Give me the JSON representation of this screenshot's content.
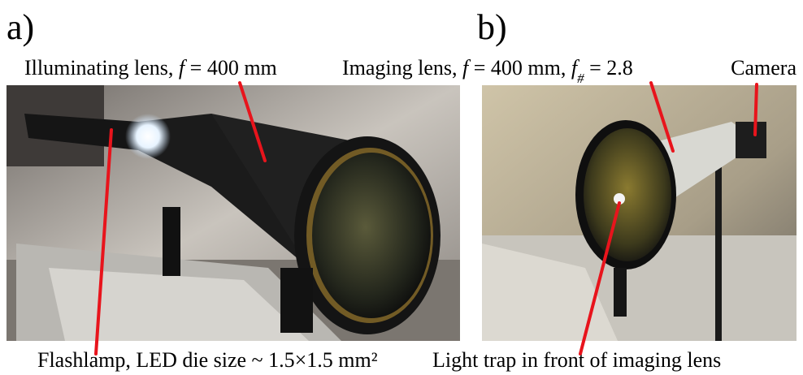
{
  "panels": [
    {
      "label": "a)",
      "annotations": [
        {
          "parts": [
            {
              "text": "Illuminating lens, "
            },
            {
              "text": "f",
              "style": "italic"
            },
            {
              "text": " = 400 mm"
            }
          ]
        },
        {
          "parts": [
            {
              "text": "Flashlamp, LED die size ~ 1.5×1.5 mm²"
            }
          ]
        }
      ]
    },
    {
      "label": "b)",
      "annotations": [
        {
          "parts": [
            {
              "text": "Imaging lens, "
            },
            {
              "text": "f",
              "style": "italic"
            },
            {
              "text": " = 400 mm, "
            },
            {
              "text": "f",
              "style": "italic"
            },
            {
              "text": "#",
              "style": "sub"
            },
            {
              "text": " = 2.8"
            }
          ]
        },
        {
          "parts": [
            {
              "text": "Camera"
            }
          ]
        },
        {
          "parts": [
            {
              "text": "Light trap in front of imaging lens"
            }
          ]
        }
      ]
    }
  ]
}
